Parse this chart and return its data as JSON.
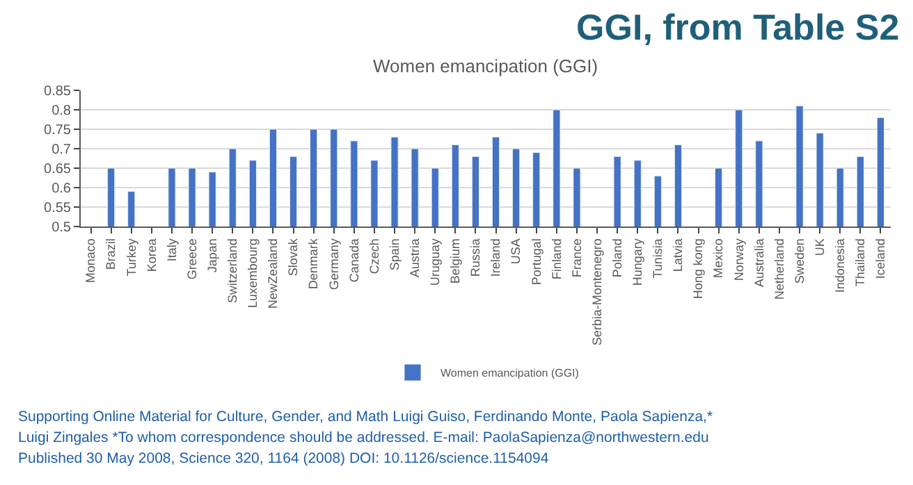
{
  "chart_data": {
    "type": "bar",
    "title": "GGI, from Table S2",
    "subtitle": "Women emancipation (GGI)",
    "categories": [
      "Monaco",
      "Brazil",
      "Turkey",
      "Korea",
      "Italy",
      "Greece",
      "Japan",
      "Switzerland",
      "Luxembourg",
      "NewZealand",
      "Slovak",
      "Denmark",
      "Germany",
      "Canada",
      "Czech",
      "Spain",
      "Austria",
      "Uruguay",
      "Belgium",
      "Russia",
      "Ireland",
      "USA",
      "Portugal",
      "Finland",
      "France",
      "Serbia-Montenegro",
      "Poland",
      "Hungary",
      "Tunisia",
      "Latvia",
      "Hong kong",
      "Mexico",
      "Norway",
      "Australia",
      "Netherland",
      "Sweden",
      "UK",
      "Indonesia",
      "Thailand",
      "Iceland"
    ],
    "series": [
      {
        "name": "Women emancipation (GGI)",
        "color": "#4472c4",
        "values": [
          null,
          0.65,
          0.59,
          null,
          0.65,
          0.65,
          0.64,
          0.7,
          0.67,
          0.75,
          0.68,
          0.75,
          0.75,
          0.72,
          0.67,
          0.73,
          0.7,
          0.65,
          0.71,
          0.68,
          0.73,
          0.7,
          0.69,
          0.8,
          0.65,
          null,
          0.68,
          0.67,
          0.63,
          0.71,
          null,
          0.65,
          0.8,
          0.72,
          null,
          0.81,
          0.74,
          0.65,
          0.68,
          0.78
        ]
      }
    ],
    "ylim": [
      0.5,
      0.85
    ],
    "yticks": [
      0.5,
      0.55,
      0.6,
      0.65,
      0.7,
      0.75,
      0.8,
      0.85
    ],
    "grid": "y",
    "legend": "bottom",
    "annotations": [
      "Supporting Online Material for Culture, Gender, and Math Luigi Guiso, Ferdinando Monte, Paola Sapienza,*",
      "Luigi Zingales *To whom correspondence should be addressed. E-mail: PaolaSapienza@northwestern.edu",
      "Published 30 May 2008, Science 320, 1164 (2008) DOI: 10.1126/science.1154094"
    ]
  }
}
